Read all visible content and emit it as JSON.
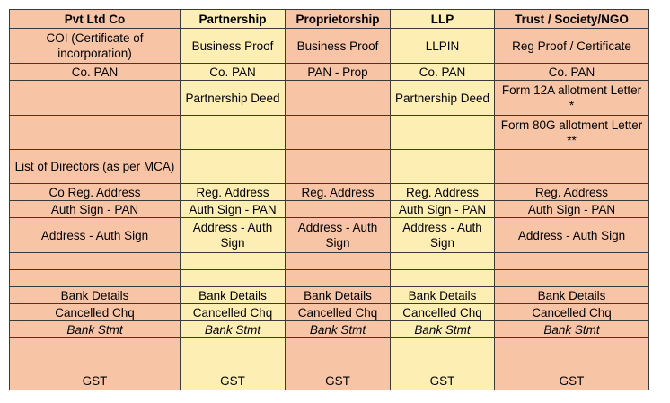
{
  "headers": [
    "Pvt Ltd Co",
    "Partnership",
    "Proprietorship",
    "LLP",
    "Trust / Society/NGO"
  ],
  "rows": [
    [
      "COI (Certificate of incorporation)",
      "Business Proof",
      "Business Proof",
      "LLPIN",
      "Reg Proof / Certificate"
    ],
    [
      "Co. PAN",
      "Co. PAN",
      "PAN - Prop",
      "Co. PAN",
      "Co. PAN"
    ],
    [
      "",
      "Partnership Deed",
      "",
      "Partnership Deed",
      "Form 12A allotment Letter *"
    ],
    [
      "",
      "",
      "",
      "",
      "Form 80G allotment Letter **"
    ],
    [
      "List of Directors (as per MCA)",
      "",
      "",
      "",
      ""
    ],
    [
      "Co Reg. Address",
      "Reg. Address",
      "Reg. Address",
      "Reg. Address",
      "Reg. Address"
    ],
    [
      "Auth Sign - PAN",
      "Auth Sign - PAN",
      "",
      "Auth Sign - PAN",
      "Auth Sign - PAN"
    ],
    [
      "Address - Auth Sign",
      "Address - Auth Sign",
      "Address - Auth Sign",
      "Address - Auth Sign",
      "Address - Auth Sign"
    ],
    [
      "",
      "",
      "",
      "",
      ""
    ],
    [
      "",
      "",
      "",
      "",
      ""
    ],
    [
      "Bank Details",
      "Bank Details",
      "Bank Details",
      "Bank Details",
      "Bank Details"
    ],
    [
      "Cancelled Chq",
      "Cancelled Chq",
      "Cancelled Chq",
      "Cancelled Chq",
      "Cancelled Chq"
    ],
    [
      "Bank Stmt",
      "Bank Stmt",
      "Bank Stmt",
      "Bank Stmt",
      "Bank Stmt"
    ],
    [
      "",
      "",
      "",
      "",
      ""
    ],
    [
      "",
      "",
      "",
      "",
      ""
    ],
    [
      "GST",
      "GST",
      "GST",
      "GST",
      "GST"
    ]
  ]
}
